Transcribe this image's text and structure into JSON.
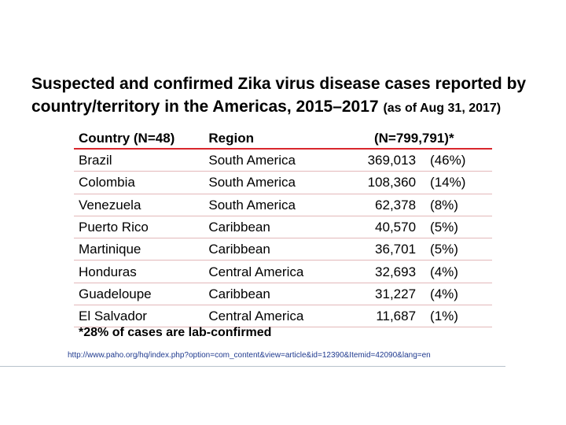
{
  "title": {
    "main": "Suspected and confirmed Zika virus disease cases reported by country/territory in the Americas, 2015–2017",
    "sub": "(as of Aug 31, 2017)"
  },
  "table": {
    "headers": {
      "country": "Country (N=48)",
      "region": "Region",
      "count": "(N=799,791)*"
    },
    "rows": [
      {
        "country": "Brazil",
        "region": "South America",
        "count": "369,013",
        "pct": "(46%)"
      },
      {
        "country": "Colombia",
        "region": "South America",
        "count": "108,360",
        "pct": "(14%)"
      },
      {
        "country": "Venezuela",
        "region": "South America",
        "count": "62,378",
        "pct": "(8%)"
      },
      {
        "country": "Puerto Rico",
        "region": "Caribbean",
        "count": "40,570",
        "pct": "(5%)"
      },
      {
        "country": "Martinique",
        "region": "Caribbean",
        "count": "36,701",
        "pct": "(5%)"
      },
      {
        "country": "Honduras",
        "region": "Central America",
        "count": "32,693",
        "pct": "(4%)"
      },
      {
        "country": "Guadeloupe",
        "region": "Caribbean",
        "count": "31,227",
        "pct": "(4%)"
      },
      {
        "country": "El Salvador",
        "region": "Central America",
        "count": "11,687",
        "pct": "(1%)"
      }
    ]
  },
  "footnote": "*28% of cases are lab-confirmed",
  "source_url": "http://www.paho.org/hq/index.php?option=com_content&view=article&id=12390&Itemid=42090&lang=en",
  "colors": {
    "header_rule": "#d9262c",
    "row_rule": "#e3b8b9",
    "link": "#1f3a8f"
  }
}
